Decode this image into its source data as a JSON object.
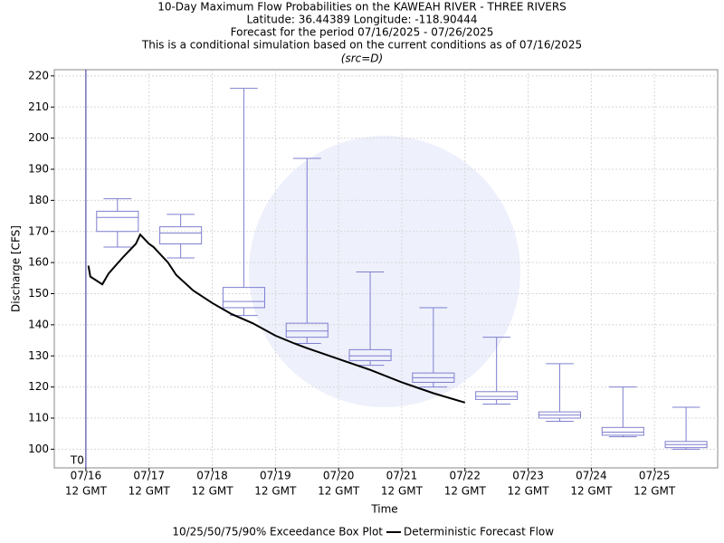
{
  "chart_data": {
    "type": "box",
    "title": [
      "10-Day Maximum Flow Probabilities on the KAWEAH RIVER - THREE RIVERS",
      "Latitude: 36.44389 Longitude: -118.90444",
      "Forecast for the period 07/16/2025 - 07/26/2025",
      "This is a conditional simulation based on the current conditions as of 07/16/2025"
    ],
    "subtitle": "(src=D)",
    "xlabel": "Time",
    "ylabel": "Discharge [CFS]",
    "annotation": "T0",
    "t0": 0,
    "xlim": [
      -0.5,
      10
    ],
    "xticks": [
      {
        "value": 0,
        "label": "07/16"
      },
      {
        "value": 1,
        "label": "07/17"
      },
      {
        "value": 2,
        "label": "07/18"
      },
      {
        "value": 3,
        "label": "07/19"
      },
      {
        "value": 4,
        "label": "07/20"
      },
      {
        "value": 5,
        "label": "07/21"
      },
      {
        "value": 6,
        "label": "07/22"
      },
      {
        "value": 7,
        "label": "07/23"
      },
      {
        "value": 8,
        "label": "07/24"
      },
      {
        "value": 9,
        "label": "07/25"
      }
    ],
    "xtick_time": "12 GMT",
    "ylim": [
      94,
      222
    ],
    "yticks": [
      100,
      110,
      120,
      130,
      140,
      150,
      160,
      170,
      180,
      190,
      200,
      210,
      220
    ],
    "grid": true,
    "boxes": {
      "name": "10/25/50/75/90% Exceedance Box Plot",
      "color": "#7f7fd0",
      "x": [
        0.5,
        1.5,
        2.5,
        3.5,
        4.5,
        5.5,
        6.5,
        7.5,
        8.5,
        9.5
      ],
      "exceed_10": [
        180.5,
        175.5,
        216,
        193.5,
        157,
        145.5,
        136,
        127.5,
        120,
        113.5
      ],
      "exceed_25": [
        176.5,
        171.5,
        152,
        140.5,
        132,
        124.5,
        118.5,
        112,
        107,
        102.5
      ],
      "exceed_50": [
        174.5,
        169.5,
        147.5,
        138,
        130,
        123,
        117,
        111,
        105.5,
        101.5
      ],
      "exceed_75": [
        170,
        166,
        145.5,
        136,
        128.5,
        121.5,
        116,
        110,
        104.5,
        100.5
      ],
      "exceed_90": [
        165,
        161.5,
        143,
        134,
        127,
        120,
        114.5,
        109,
        104,
        100
      ]
    },
    "series": [
      {
        "name": "Deterministic Forecast Flow",
        "color": "#000000",
        "x": [
          0.04,
          0.07,
          0.26,
          0.36,
          0.6,
          0.79,
          0.86,
          1.0,
          1.07,
          1.3,
          1.43,
          1.7,
          2.0,
          2.3,
          2.64,
          3.0,
          3.3,
          3.5,
          4.0,
          4.5,
          5.0,
          5.5,
          6.0
        ],
        "values": [
          159,
          155.5,
          153,
          156.5,
          162,
          166,
          169,
          166,
          165,
          160,
          156,
          151,
          147,
          143.5,
          140.5,
          136.5,
          134,
          132.5,
          129,
          125.5,
          121.5,
          118,
          115
        ]
      }
    ]
  }
}
